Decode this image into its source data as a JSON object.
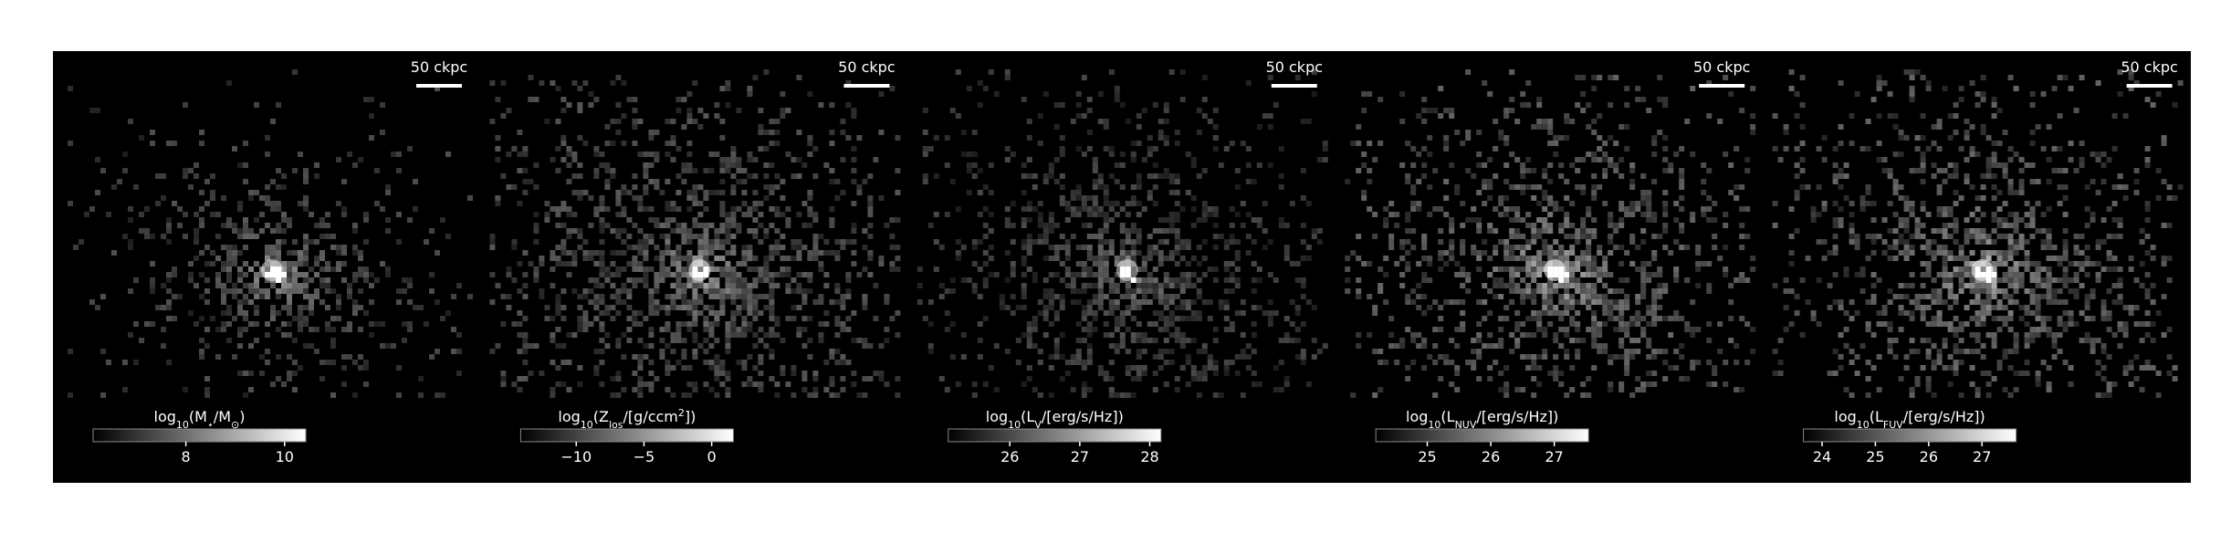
{
  "panels": [
    {
      "scale_bar": "50 ckpc",
      "brightness": 0.55,
      "spread": 0.55,
      "colorbar": {
        "label": [
          {
            "text": "log"
          },
          {
            "text": "10",
            "sub": true
          },
          {
            "text": "(M"
          },
          {
            "text": "⋆",
            "sub": true
          },
          {
            "text": "/M"
          },
          {
            "text": "⊙",
            "sub": true
          },
          {
            "text": ")"
          }
        ],
        "range": [
          6.12,
          10.43
        ],
        "ticks": [
          8,
          10
        ]
      }
    },
    {
      "scale_bar": "50 ckpc",
      "brightness": 0.6,
      "spread": 1.0,
      "colorbar": {
        "label": [
          {
            "text": "log"
          },
          {
            "text": "10",
            "sub": true
          },
          {
            "text": "(Z"
          },
          {
            "text": "los",
            "sub": true
          },
          {
            "text": "/[g/ccm"
          },
          {
            "text": "2",
            "sup": true
          },
          {
            "text": "])"
          }
        ],
        "range": [
          -14.1,
          1.6
        ],
        "ticks": [
          {
            "value": -10,
            "label": "−10"
          },
          {
            "value": -5,
            "label": "−5"
          },
          0
        ]
      }
    },
    {
      "scale_bar": "50 ckpc",
      "brightness": 0.5,
      "spread": 0.85,
      "colorbar": {
        "label": [
          {
            "text": "log"
          },
          {
            "text": "10",
            "sub": true
          },
          {
            "text": "(L"
          },
          {
            "text": "V",
            "sub": true
          },
          {
            "text": "/[erg/s/Hz])"
          }
        ],
        "range": [
          25.12,
          28.16
        ],
        "ticks": [
          26,
          27,
          28
        ]
      }
    },
    {
      "scale_bar": "50 ckpc",
      "brightness": 0.7,
      "spread": 0.9,
      "colorbar": {
        "label": [
          {
            "text": "log"
          },
          {
            "text": "10",
            "sub": true
          },
          {
            "text": "(L"
          },
          {
            "text": "NUV",
            "sub": true
          },
          {
            "text": "/[erg/s/Hz])"
          }
        ],
        "range": [
          24.19,
          27.54
        ],
        "ticks": [
          25,
          26,
          27
        ]
      }
    },
    {
      "scale_bar": "50 ckpc",
      "brightness": 0.7,
      "spread": 0.9,
      "colorbar": {
        "label": [
          {
            "text": "log"
          },
          {
            "text": "10",
            "sub": true
          },
          {
            "text": "(L"
          },
          {
            "text": "FUV",
            "sub": true
          },
          {
            "text": "/[erg/s/Hz])"
          }
        ],
        "range": [
          23.65,
          27.64
        ],
        "ticks": [
          24,
          25,
          26,
          27
        ]
      }
    }
  ]
}
